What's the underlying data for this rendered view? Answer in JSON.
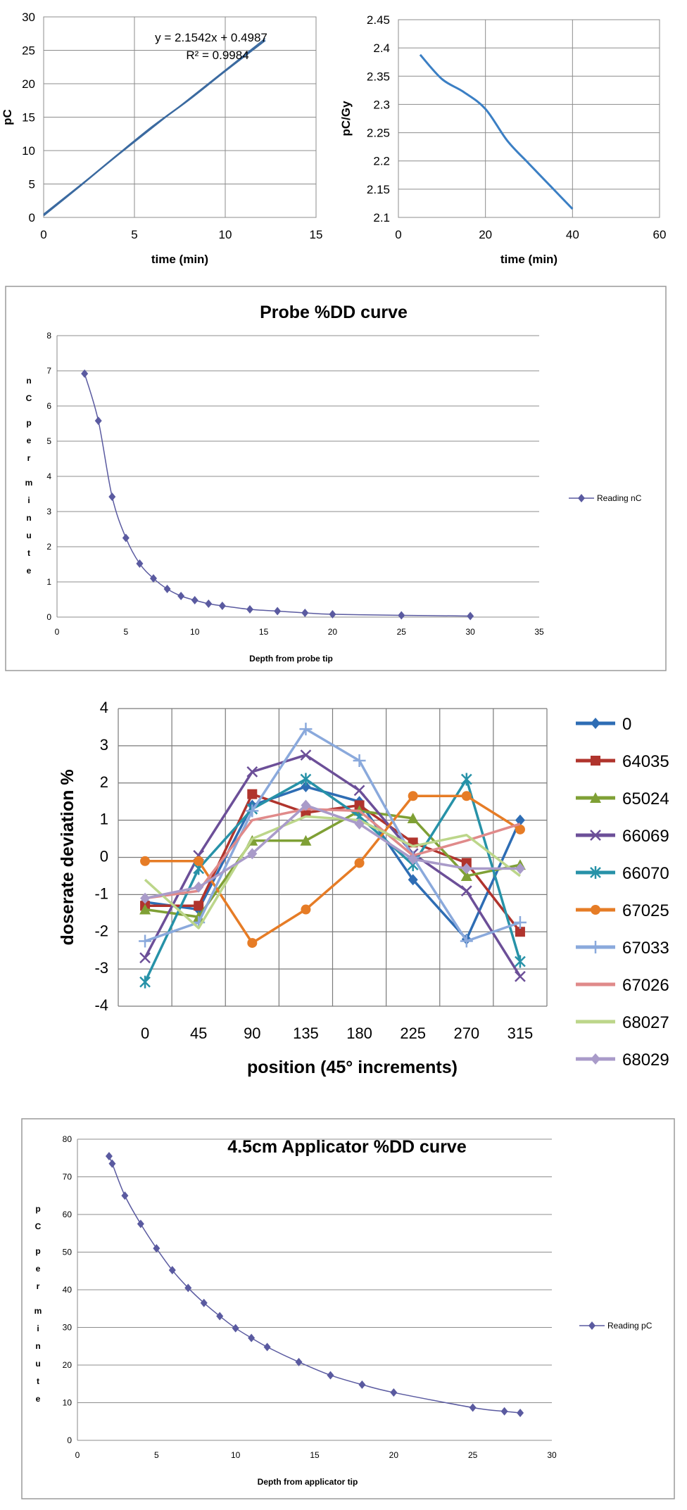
{
  "chart_data": [
    {
      "type": "line",
      "title": "",
      "xlabel": "time (min)",
      "ylabel": "pC",
      "xlim": [
        0,
        15
      ],
      "ylim": [
        0,
        30
      ],
      "xticks": [
        "0",
        "5",
        "10",
        "15"
      ],
      "yticks": [
        "0",
        "5",
        "10",
        "15",
        "20",
        "25",
        "30"
      ],
      "grid": true,
      "annotation": [
        "y = 2.1542x + 0.4987",
        "R² = 0.9984"
      ],
      "series": [
        {
          "x": [
            0,
            2,
            4,
            6,
            8,
            10,
            12.2
          ],
          "y": [
            0.3,
            4.7,
            9.2,
            13.6,
            17.6,
            21.9,
            26.5
          ],
          "color": "#3b6aa0"
        },
        {
          "x": [
            0,
            12.2
          ],
          "y": [
            0.4987,
            26.78
          ],
          "color": "#3b6aa0"
        }
      ]
    },
    {
      "type": "line",
      "title": "",
      "xlabel": "time (min)",
      "ylabel": "pC/Gy",
      "xlim": [
        0,
        60
      ],
      "ylim": [
        2.1,
        2.45
      ],
      "xticks": [
        "0",
        "20",
        "40",
        "60"
      ],
      "yticks": [
        "2.1",
        "2.15",
        "2.2",
        "2.25",
        "2.3",
        "2.35",
        "2.4",
        "2.45"
      ],
      "grid": true,
      "series": [
        {
          "x": [
            5,
            10,
            15,
            20,
            25,
            30,
            35,
            40
          ],
          "y": [
            2.388,
            2.345,
            2.322,
            2.292,
            2.236,
            2.195,
            2.155,
            2.115
          ],
          "color": "#3b7fc4"
        }
      ]
    },
    {
      "type": "line",
      "title": "Probe %DD curve",
      "xlabel": "Depth from probe tip",
      "ylabel": "nC per minute",
      "xlim": [
        0,
        35
      ],
      "ylim": [
        0,
        8
      ],
      "xticks": [
        "0",
        "5",
        "10",
        "15",
        "20",
        "25",
        "30",
        "35"
      ],
      "yticks": [
        "0",
        "1",
        "2",
        "3",
        "4",
        "5",
        "6",
        "7",
        "8"
      ],
      "grid": true,
      "legend": "right",
      "series": [
        {
          "name": "Reading nC",
          "color": "#5a5aa0",
          "x": [
            2,
            3,
            4,
            5,
            6,
            7,
            8,
            9,
            10,
            11,
            12,
            14,
            16,
            18,
            20,
            25,
            30
          ],
          "y": [
            6.92,
            5.58,
            3.42,
            2.25,
            1.52,
            1.1,
            0.8,
            0.6,
            0.48,
            0.38,
            0.32,
            0.22,
            0.17,
            0.12,
            0.08,
            0.05,
            0.03
          ]
        }
      ]
    },
    {
      "type": "line",
      "title": "",
      "xlabel": "position (45° increments)",
      "ylabel": "doserate deviation %",
      "categories": [
        "0",
        "45",
        "90",
        "135",
        "180",
        "225",
        "270",
        "315"
      ],
      "ylim": [
        -4,
        4
      ],
      "yticks": [
        "-4",
        "-3",
        "-2",
        "-1",
        "0",
        "1",
        "2",
        "3",
        "4"
      ],
      "grid": true,
      "legend": "right",
      "series": [
        {
          "name": "0",
          "color": "#2e6db4",
          "marker": "diamond",
          "values": [
            -1.2,
            -1.4,
            1.4,
            1.9,
            1.5,
            -0.6,
            -2.2,
            1.0
          ]
        },
        {
          "name": "64035",
          "color": "#b0342d",
          "marker": "square",
          "values": [
            -1.3,
            -1.3,
            1.7,
            1.2,
            1.4,
            0.4,
            -0.15,
            -2.0
          ]
        },
        {
          "name": "65024",
          "color": "#7fa035",
          "marker": "triangle",
          "values": [
            -1.4,
            -1.6,
            0.45,
            0.45,
            1.25,
            1.05,
            -0.5,
            -0.2
          ]
        },
        {
          "name": "66069",
          "color": "#6c4f98",
          "marker": "x",
          "values": [
            -2.7,
            0.05,
            2.3,
            2.75,
            1.8,
            0.1,
            -0.9,
            -3.2
          ]
        },
        {
          "name": "66070",
          "color": "#2792a8",
          "marker": "star",
          "values": [
            -3.35,
            -0.3,
            1.3,
            2.1,
            1.1,
            -0.2,
            2.1,
            -2.8
          ]
        },
        {
          "name": "67025",
          "color": "#e67c26",
          "marker": "circle",
          "values": [
            -0.1,
            -0.1,
            -2.3,
            -1.4,
            -0.15,
            1.65,
            1.65,
            0.75
          ]
        },
        {
          "name": "67033",
          "color": "#8aa9dc",
          "marker": "plus",
          "values": [
            -2.25,
            -1.75,
            1.25,
            3.45,
            2.6,
            0.0,
            -2.25,
            -1.75
          ]
        },
        {
          "name": "67026",
          "color": "#e08a8a",
          "marker": "none",
          "values": [
            -1.1,
            -0.9,
            1.0,
            1.3,
            1.25,
            0.05,
            0.45,
            0.9
          ]
        },
        {
          "name": "68027",
          "color": "#bcd68a",
          "marker": "none",
          "values": [
            -0.6,
            -1.9,
            0.5,
            1.1,
            1.0,
            0.3,
            0.6,
            -0.5
          ]
        },
        {
          "name": "68029",
          "color": "#a99bc9",
          "marker": "diamond",
          "values": [
            -1.1,
            -0.8,
            0.1,
            1.4,
            0.9,
            -0.05,
            -0.3,
            -0.3
          ]
        }
      ]
    },
    {
      "type": "line",
      "title": "4.5cm Applicator %DD curve",
      "xlabel": "Depth from applicator tip",
      "ylabel": "pC per minute",
      "xlim": [
        0,
        30
      ],
      "ylim": [
        0,
        80
      ],
      "xticks": [
        "0",
        "5",
        "10",
        "15",
        "20",
        "25",
        "30"
      ],
      "yticks": [
        "0",
        "10",
        "20",
        "30",
        "40",
        "50",
        "60",
        "70",
        "80"
      ],
      "grid": true,
      "legend": "right",
      "series": [
        {
          "name": "Reading pC",
          "color": "#5a5aa0",
          "x": [
            2,
            2.2,
            3,
            4,
            5,
            6,
            7,
            8,
            9,
            10,
            11,
            12,
            14,
            16,
            18,
            20,
            25,
            27,
            28
          ],
          "y": [
            75.5,
            73.5,
            65,
            57.5,
            51,
            45.2,
            40.5,
            36.5,
            33,
            29.8,
            27.2,
            24.8,
            20.8,
            17.3,
            14.8,
            12.7,
            8.7,
            7.7,
            7.3
          ]
        }
      ]
    }
  ]
}
